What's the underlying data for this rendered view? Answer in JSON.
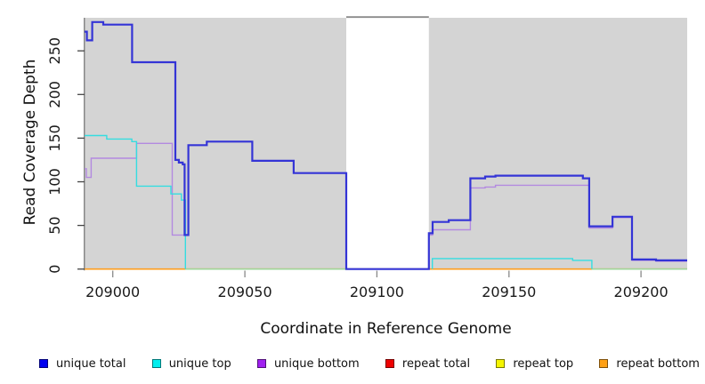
{
  "figure": {
    "y_axis": {
      "label": "Read Coverage Depth",
      "ticks": [
        0,
        50,
        100,
        150,
        200,
        250
      ]
    },
    "x_axis": {
      "label": "Coordinate in Reference Genome",
      "ticks": [
        209000,
        209050,
        209100,
        209150,
        209200
      ]
    },
    "legend": [
      {
        "label": "unique total",
        "color": "#0000f0"
      },
      {
        "label": "unique top",
        "color": "#00eeee"
      },
      {
        "label": "unique bottom",
        "color": "#a020f0"
      },
      {
        "label": "repeat total",
        "color": "#ee0000"
      },
      {
        "label": "repeat top",
        "color": "#f5f500"
      },
      {
        "label": "repeat bottom",
        "color": "#ffa015"
      }
    ]
  },
  "chart_data": {
    "type": "line",
    "step": true,
    "title": "",
    "xlabel": "Coordinate in Reference Genome",
    "ylabel": "Read Coverage Depth",
    "xlim": [
      208989.3,
      209217.5
    ],
    "ylim": [
      0,
      288
    ],
    "grid": false,
    "legend_position": "bottom",
    "region_color": "#d4d4d4",
    "regions": [
      [
        208989.3,
        209088.4
      ],
      [
        209119.7,
        209217.5
      ]
    ],
    "gap": [
      209088.4,
      209119.7
    ],
    "gap_top_line_color": "#8a8a8a",
    "baseline_artifacts": [
      {
        "color": "#9fd69c",
        "x1": 209027.5,
        "x2": 209088.4
      },
      {
        "color": "#9fd69c",
        "x1": 209181.4,
        "x2": 209217.5
      }
    ],
    "series": [
      {
        "name": "repeat total",
        "color": "#ee2222",
        "width": 1.2,
        "segments": [
          {
            "points": [
              [
                208989.3,
                0
              ]
            ],
            "end": 209217.5,
            "from_zero": false
          }
        ]
      },
      {
        "name": "repeat top",
        "color": "#f0f000",
        "width": 1.2,
        "segments": [
          {
            "points": [
              [
                208989.3,
                0
              ]
            ],
            "end": 209217.5,
            "from_zero": false
          }
        ]
      },
      {
        "name": "repeat bottom",
        "color": "#ff9d1e",
        "width": 1.6,
        "segments": [
          {
            "points": [
              [
                208989.3,
                0
              ]
            ],
            "end": 209217.5,
            "from_zero": false
          }
        ]
      },
      {
        "name": "unique bottom",
        "color": "#b38ae0",
        "width": 1.4,
        "segments": [
          {
            "points": [
              [
                208989.3,
                115
              ],
              [
                208990.0,
                105
              ],
              [
                208991.8,
                127
              ],
              [
                209009.0,
                144
              ],
              [
                209022.5,
                39
              ],
              [
                209028.6,
                142
              ],
              [
                209035.6,
                146
              ],
              [
                209052.8,
                124
              ],
              [
                209068.5,
                110
              ],
              [
                209088.4,
                0
              ],
              [
                209119.7,
                39
              ],
              [
                209121.1,
                45
              ],
              [
                209135.4,
                93
              ],
              [
                209141.0,
                94
              ],
              [
                209144.9,
                96
              ],
              [
                209180.4,
                47
              ],
              [
                209189.2,
                59
              ],
              [
                209196.6,
                10
              ],
              [
                209205.7,
                9
              ]
            ],
            "end": 209217.5,
            "from_zero": false
          }
        ]
      },
      {
        "name": "unique top",
        "color": "#35dde0",
        "width": 1.4,
        "segments": [
          {
            "points": [
              [
                208989.3,
                153
              ],
              [
                208997.7,
                149
              ],
              [
                209007.2,
                146
              ],
              [
                209009.0,
                95
              ],
              [
                209022.0,
                86
              ],
              [
                209026.0,
                79
              ],
              [
                209027.5,
                0
              ]
            ],
            "end": null,
            "from_zero": false
          },
          {
            "points": [
              [
                209121.0,
                12
              ],
              [
                209174.1,
                10
              ],
              [
                209181.4,
                0
              ]
            ],
            "end": null,
            "from_zero": true
          }
        ]
      },
      {
        "name": "unique total",
        "color": "#3434d6",
        "width": 2.2,
        "segments": [
          {
            "points": [
              [
                208989.3,
                272
              ],
              [
                208990.2,
                262
              ],
              [
                208992.2,
                283
              ],
              [
                208996.4,
                280
              ],
              [
                209007.3,
                237
              ],
              [
                209023.7,
                125
              ],
              [
                209025.0,
                122
              ],
              [
                209026.5,
                120
              ],
              [
                209027.2,
                39
              ],
              [
                209028.6,
                142
              ],
              [
                209035.6,
                146
              ],
              [
                209052.8,
                124
              ],
              [
                209068.5,
                110
              ],
              [
                209088.4,
                0
              ],
              [
                209119.7,
                41
              ],
              [
                209121.1,
                54
              ],
              [
                209127.2,
                56
              ],
              [
                209135.4,
                104
              ],
              [
                209141.0,
                106
              ],
              [
                209144.9,
                107
              ],
              [
                209178.0,
                104
              ],
              [
                209180.4,
                49
              ],
              [
                209189.2,
                60
              ],
              [
                209196.6,
                11
              ],
              [
                209205.7,
                10
              ]
            ],
            "end": 209217.5,
            "from_zero": false
          }
        ]
      }
    ]
  }
}
